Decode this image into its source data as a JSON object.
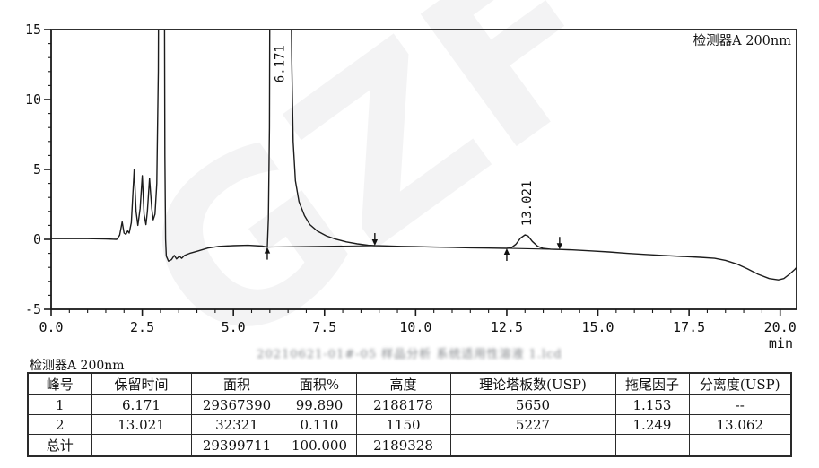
{
  "chart_data": {
    "type": "line",
    "title": "检测器A  200nm",
    "x_axis": {
      "min": 0,
      "max": 20.45,
      "major": 2.5,
      "minor": 0.5,
      "unit": "min",
      "tick_labels": [
        "0.0",
        "2.5",
        "5.0",
        "7.5",
        "10.0",
        "12.5",
        "15.0",
        "17.5",
        "20.0"
      ]
    },
    "y_axis": {
      "min": -5,
      "max": 15,
      "major": 5,
      "minor": 1,
      "tick_labels": [
        "-5",
        "0",
        "5",
        "10",
        "15"
      ]
    },
    "grid": false,
    "line_color": "#1c1c1c",
    "points": [
      [
        0,
        0.05
      ],
      [
        0.5,
        0.05
      ],
      [
        1.0,
        0.05
      ],
      [
        1.5,
        0.03
      ],
      [
        1.8,
        0.0
      ],
      [
        1.88,
        0.3
      ],
      [
        1.95,
        1.25
      ],
      [
        2.0,
        0.45
      ],
      [
        2.05,
        0.35
      ],
      [
        2.1,
        0.6
      ],
      [
        2.14,
        0.45
      ],
      [
        2.2,
        1.2
      ],
      [
        2.28,
        5.0
      ],
      [
        2.33,
        2.0
      ],
      [
        2.38,
        1.0
      ],
      [
        2.44,
        2.2
      ],
      [
        2.5,
        4.55
      ],
      [
        2.55,
        1.8
      ],
      [
        2.6,
        1.05
      ],
      [
        2.64,
        2.0
      ],
      [
        2.7,
        4.35
      ],
      [
        2.76,
        2.2
      ],
      [
        2.8,
        1.4
      ],
      [
        2.85,
        1.8
      ],
      [
        2.9,
        4.0
      ],
      [
        2.94,
        12
      ],
      [
        2.96,
        26
      ],
      [
        3.1,
        26
      ],
      [
        3.12,
        6
      ],
      [
        3.14,
        0
      ],
      [
        3.16,
        -1.2
      ],
      [
        3.22,
        -1.55
      ],
      [
        3.3,
        -1.45
      ],
      [
        3.38,
        -1.15
      ],
      [
        3.44,
        -1.4
      ],
      [
        3.52,
        -1.2
      ],
      [
        3.58,
        -1.35
      ],
      [
        3.66,
        -1.15
      ],
      [
        3.8,
        -1.0
      ],
      [
        4.0,
        -0.85
      ],
      [
        4.3,
        -0.62
      ],
      [
        4.6,
        -0.5
      ],
      [
        5.0,
        -0.45
      ],
      [
        5.4,
        -0.42
      ],
      [
        5.8,
        -0.48
      ],
      [
        5.93,
        -0.55
      ],
      [
        5.96,
        1.5
      ],
      [
        5.99,
        8
      ],
      [
        6.01,
        26
      ],
      [
        6.55,
        26
      ],
      [
        6.6,
        13
      ],
      [
        6.64,
        7
      ],
      [
        6.7,
        4.2
      ],
      [
        6.8,
        2.7
      ],
      [
        6.95,
        1.7
      ],
      [
        7.1,
        1.05
      ],
      [
        7.3,
        0.6
      ],
      [
        7.55,
        0.25
      ],
      [
        7.8,
        0.02
      ],
      [
        8.1,
        -0.18
      ],
      [
        8.4,
        -0.32
      ],
      [
        8.7,
        -0.42
      ],
      [
        8.88,
        -0.45
      ],
      [
        9.2,
        -0.47
      ],
      [
        9.6,
        -0.5
      ],
      [
        10.0,
        -0.52
      ],
      [
        10.5,
        -0.55
      ],
      [
        11.0,
        -0.57
      ],
      [
        11.5,
        -0.6
      ],
      [
        12.0,
        -0.62
      ],
      [
        12.5,
        -0.64
      ],
      [
        12.62,
        -0.6
      ],
      [
        12.75,
        -0.35
      ],
      [
        12.88,
        0.1
      ],
      [
        13.0,
        0.32
      ],
      [
        13.08,
        0.25
      ],
      [
        13.2,
        -0.15
      ],
      [
        13.35,
        -0.5
      ],
      [
        13.5,
        -0.65
      ],
      [
        13.7,
        -0.7
      ],
      [
        13.95,
        -0.72
      ],
      [
        14.3,
        -0.75
      ],
      [
        14.8,
        -0.82
      ],
      [
        15.3,
        -0.9
      ],
      [
        15.8,
        -1.0
      ],
      [
        16.3,
        -1.08
      ],
      [
        16.8,
        -1.15
      ],
      [
        17.3,
        -1.22
      ],
      [
        17.8,
        -1.28
      ],
      [
        18.2,
        -1.35
      ],
      [
        18.5,
        -1.5
      ],
      [
        18.8,
        -1.75
      ],
      [
        19.1,
        -2.1
      ],
      [
        19.4,
        -2.5
      ],
      [
        19.7,
        -2.8
      ],
      [
        19.95,
        -2.9
      ],
      [
        20.1,
        -2.8
      ],
      [
        20.25,
        -2.5
      ],
      [
        20.4,
        -2.15
      ],
      [
        20.45,
        -2.0
      ]
    ],
    "integration_baselines": [
      {
        "from": [
          5.93,
          -0.55
        ],
        "to": [
          8.88,
          -0.45
        ]
      },
      {
        "from": [
          12.5,
          -0.64
        ],
        "to": [
          13.95,
          -0.72
        ]
      }
    ],
    "peak_labels": [
      {
        "label": "6.171",
        "t": 6.38,
        "v_bottom": 11.2
      },
      {
        "label": "13.021",
        "t": 13.17,
        "v_bottom": 0.95
      }
    ],
    "markers": [
      {
        "type": "peak-start-arrow",
        "t": 5.93,
        "v": -0.55
      },
      {
        "type": "peak-end-arrow",
        "t": 8.88,
        "v": -0.45
      },
      {
        "type": "peak-start-arrow",
        "t": 12.5,
        "v": -0.64
      },
      {
        "type": "peak-end-arrow",
        "t": 13.95,
        "v": -0.72
      }
    ],
    "watermark": "GZF"
  },
  "caption": "20210621-01#-05 样品分析 系统适用性溶液 1.lcd",
  "table": {
    "section_label": "检测器A 200nm",
    "headers": [
      "峰号",
      "保留时间",
      "面积",
      "面积%",
      "高度",
      "理论塔板数(USP)",
      "拖尾因子",
      "分离度(USP)"
    ],
    "rows": [
      [
        "1",
        "6.171",
        "29367390",
        "99.890",
        "2188178",
        "5650",
        "1.153",
        "--"
      ],
      [
        "2",
        "13.021",
        "32321",
        "0.110",
        "1150",
        "5227",
        "1.249",
        "13.062"
      ],
      [
        "总计",
        "",
        "29399711",
        "100.000",
        "2189328",
        "",
        "",
        ""
      ]
    ]
  }
}
